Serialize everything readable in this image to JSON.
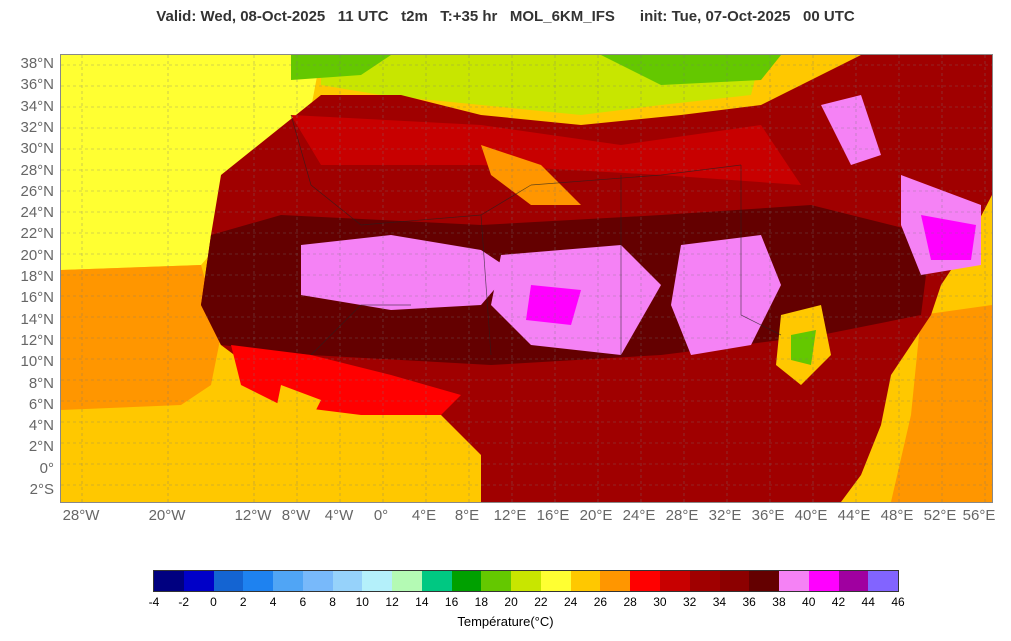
{
  "header": {
    "title": "Valid: Wed, 08-Oct-2025   11 UTC   t2m   T:+35 hr   MOL_6KM_IFS      init: Tue, 07-Oct-2025   00 UTC"
  },
  "map": {
    "lat_labels": [
      "38°N",
      "36°N",
      "34°N",
      "32°N",
      "30°N",
      "28°N",
      "26°N",
      "24°N",
      "22°N",
      "20°N",
      "18°N",
      "16°N",
      "14°N",
      "12°N",
      "10°N",
      "8°N",
      "6°N",
      "4°N",
      "2°N",
      "0°",
      "2°S"
    ],
    "lon_labels": [
      "28°W",
      "20°W",
      "12°W",
      "8°W",
      "4°W",
      "0°",
      "4°E",
      "8°E",
      "12°E",
      "16°E",
      "20°E",
      "24°E",
      "28°E",
      "32°E",
      "36°E",
      "40°E",
      "44°E",
      "48°E",
      "52°E",
      "56°E"
    ]
  },
  "legend": {
    "label": "Température(°C)",
    "ticks": [
      "-4",
      "-2",
      "0",
      "2",
      "4",
      "6",
      "8",
      "10",
      "12",
      "14",
      "16",
      "18",
      "20",
      "22",
      "24",
      "26",
      "28",
      "30",
      "32",
      "34",
      "36",
      "38",
      "40",
      "42",
      "44",
      "46"
    ],
    "colors": [
      "#000080",
      "#0000c8",
      "#1464d2",
      "#1e82f0",
      "#50a5f5",
      "#78b9fa",
      "#96d2fa",
      "#b4f0fa",
      "#b4fab4",
      "#00c882",
      "#00a000",
      "#64c800",
      "#c8e600",
      "#ffff32",
      "#ffc800",
      "#ff9600",
      "#ff0000",
      "#c80000",
      "#a00000",
      "#8c0000",
      "#640000",
      "#f582f5",
      "#ff00ff",
      "#a000a0",
      "#8264ff"
    ]
  }
}
